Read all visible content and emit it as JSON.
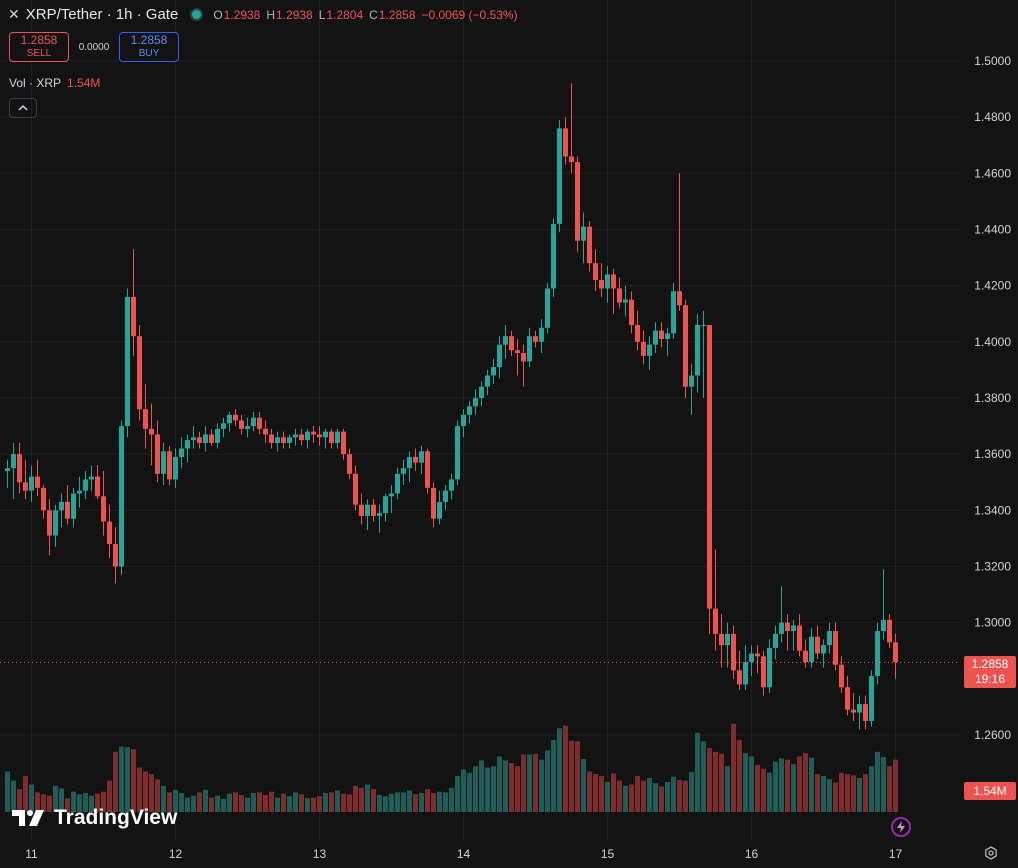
{
  "header": {
    "close_glyph": "✕",
    "symbol": "XRP/Tether · 1h · Gate",
    "ohlc": {
      "o_label": "O",
      "o": "1.2938",
      "h_label": "H",
      "h": "1.2938",
      "l_label": "L",
      "l": "1.2804",
      "c_label": "C",
      "c": "1.2858",
      "change": "−0.0069 (−0.53%)"
    }
  },
  "trade": {
    "sell_price": "1.2858",
    "sell_label": "SELL",
    "spread": "0.0000",
    "buy_price": "1.2858",
    "buy_label": "BUY"
  },
  "volume_legend": {
    "label": "Vol · XRP",
    "value": "1.54M"
  },
  "branding": {
    "name": "TradingView"
  },
  "last_price": {
    "price": "1.2858",
    "countdown": "19:16"
  },
  "last_volume": "1.54M",
  "colors": {
    "up": "#26a69a",
    "down": "#ef5350",
    "background": "#131313",
    "grid": "#1f1f1f",
    "text": "#d1d4dc"
  },
  "icons": {
    "close": "close-icon",
    "status": "status-dot",
    "collapse": "chevron-up-icon",
    "logo": "tradingview-logo-icon",
    "bolt": "lightning-icon",
    "settings": "gear-icon"
  },
  "chart_data": {
    "type": "candlestick",
    "symbol": "XRP/Tether",
    "interval": "1h",
    "exchange": "Gate",
    "y_ticks": [
      "1.5000",
      "1.4800",
      "1.4600",
      "1.4400",
      "1.4200",
      "1.4000",
      "1.3800",
      "1.3600",
      "1.3400",
      "1.3200",
      "1.3000",
      "1.2600"
    ],
    "ylim": [
      1.2434,
      1.5148
    ],
    "x_ticks": [
      "11",
      "12",
      "13",
      "14",
      "15",
      "16",
      "17"
    ],
    "x_tick_index": [
      4,
      28,
      52,
      76,
      100,
      124,
      148
    ],
    "grid": true,
    "last_price": 1.2858,
    "ohlc": [
      [
        1.354,
        1.358,
        1.348,
        1.355
      ],
      [
        1.355,
        1.364,
        1.344,
        1.36
      ],
      [
        1.36,
        1.364,
        1.346,
        1.35
      ],
      [
        1.35,
        1.358,
        1.344,
        1.347
      ],
      [
        1.347,
        1.356,
        1.343,
        1.352
      ],
      [
        1.352,
        1.358,
        1.345,
        1.348
      ],
      [
        1.348,
        1.349,
        1.337,
        1.34
      ],
      [
        1.34,
        1.344,
        1.324,
        1.331
      ],
      [
        1.331,
        1.342,
        1.327,
        1.34
      ],
      [
        1.34,
        1.346,
        1.334,
        1.343
      ],
      [
        1.343,
        1.349,
        1.335,
        1.337
      ],
      [
        1.337,
        1.348,
        1.334,
        1.346
      ],
      [
        1.346,
        1.352,
        1.341,
        1.347
      ],
      [
        1.347,
        1.354,
        1.344,
        1.351
      ],
      [
        1.351,
        1.356,
        1.347,
        1.352
      ],
      [
        1.352,
        1.356,
        1.344,
        1.345
      ],
      [
        1.345,
        1.354,
        1.331,
        1.336
      ],
      [
        1.336,
        1.342,
        1.323,
        1.328
      ],
      [
        1.328,
        1.334,
        1.314,
        1.32
      ],
      [
        1.32,
        1.372,
        1.317,
        1.37
      ],
      [
        1.37,
        1.419,
        1.366,
        1.416
      ],
      [
        1.416,
        1.433,
        1.395,
        1.402
      ],
      [
        1.402,
        1.406,
        1.372,
        1.376
      ],
      [
        1.376,
        1.385,
        1.362,
        1.369
      ],
      [
        1.369,
        1.378,
        1.356,
        1.367
      ],
      [
        1.367,
        1.372,
        1.35,
        1.353
      ],
      [
        1.353,
        1.364,
        1.349,
        1.361
      ],
      [
        1.361,
        1.363,
        1.349,
        1.351
      ],
      [
        1.351,
        1.362,
        1.348,
        1.359
      ],
      [
        1.359,
        1.366,
        1.355,
        1.362
      ],
      [
        1.362,
        1.367,
        1.357,
        1.365
      ],
      [
        1.365,
        1.37,
        1.362,
        1.366
      ],
      [
        1.366,
        1.368,
        1.362,
        1.364
      ],
      [
        1.364,
        1.37,
        1.361,
        1.367
      ],
      [
        1.367,
        1.369,
        1.363,
        1.364
      ],
      [
        1.364,
        1.371,
        1.362,
        1.369
      ],
      [
        1.369,
        1.373,
        1.366,
        1.371
      ],
      [
        1.371,
        1.375,
        1.368,
        1.374
      ],
      [
        1.374,
        1.376,
        1.37,
        1.372
      ],
      [
        1.372,
        1.374,
        1.367,
        1.369
      ],
      [
        1.369,
        1.373,
        1.366,
        1.37
      ],
      [
        1.37,
        1.375,
        1.368,
        1.373
      ],
      [
        1.373,
        1.375,
        1.367,
        1.369
      ],
      [
        1.369,
        1.372,
        1.364,
        1.367
      ],
      [
        1.367,
        1.369,
        1.362,
        1.364
      ],
      [
        1.364,
        1.368,
        1.361,
        1.366
      ],
      [
        1.366,
        1.368,
        1.362,
        1.364
      ],
      [
        1.364,
        1.367,
        1.362,
        1.366
      ],
      [
        1.366,
        1.369,
        1.363,
        1.367
      ],
      [
        1.367,
        1.369,
        1.363,
        1.365
      ],
      [
        1.365,
        1.369,
        1.362,
        1.368
      ],
      [
        1.368,
        1.37,
        1.364,
        1.367
      ],
      [
        1.367,
        1.37,
        1.363,
        1.366
      ],
      [
        1.366,
        1.369,
        1.362,
        1.368
      ],
      [
        1.368,
        1.369,
        1.362,
        1.364
      ],
      [
        1.364,
        1.369,
        1.362,
        1.368
      ],
      [
        1.368,
        1.369,
        1.358,
        1.36
      ],
      [
        1.36,
        1.362,
        1.351,
        1.353
      ],
      [
        1.353,
        1.356,
        1.34,
        1.342
      ],
      [
        1.342,
        1.346,
        1.335,
        1.338
      ],
      [
        1.338,
        1.344,
        1.333,
        1.342
      ],
      [
        1.342,
        1.344,
        1.336,
        1.338
      ],
      [
        1.338,
        1.342,
        1.332,
        1.339
      ],
      [
        1.339,
        1.346,
        1.336,
        1.345
      ],
      [
        1.345,
        1.349,
        1.339,
        1.346
      ],
      [
        1.346,
        1.355,
        1.344,
        1.353
      ],
      [
        1.353,
        1.358,
        1.349,
        1.355
      ],
      [
        1.355,
        1.361,
        1.35,
        1.359
      ],
      [
        1.359,
        1.362,
        1.354,
        1.357
      ],
      [
        1.357,
        1.363,
        1.353,
        1.361
      ],
      [
        1.361,
        1.362,
        1.346,
        1.348
      ],
      [
        1.348,
        1.35,
        1.334,
        1.337
      ],
      [
        1.337,
        1.347,
        1.335,
        1.343
      ],
      [
        1.343,
        1.349,
        1.34,
        1.347
      ],
      [
        1.347,
        1.353,
        1.344,
        1.351
      ],
      [
        1.351,
        1.372,
        1.349,
        1.37
      ],
      [
        1.37,
        1.376,
        1.366,
        1.374
      ],
      [
        1.374,
        1.379,
        1.371,
        1.377
      ],
      [
        1.377,
        1.383,
        1.374,
        1.38
      ],
      [
        1.38,
        1.386,
        1.377,
        1.384
      ],
      [
        1.384,
        1.39,
        1.381,
        1.388
      ],
      [
        1.388,
        1.394,
        1.385,
        1.391
      ],
      [
        1.391,
        1.402,
        1.387,
        1.399
      ],
      [
        1.399,
        1.406,
        1.394,
        1.402
      ],
      [
        1.402,
        1.404,
        1.395,
        1.397
      ],
      [
        1.397,
        1.401,
        1.388,
        1.396
      ],
      [
        1.396,
        1.399,
        1.384,
        1.393
      ],
      [
        1.393,
        1.405,
        1.391,
        1.402
      ],
      [
        1.402,
        1.404,
        1.398,
        1.4
      ],
      [
        1.4,
        1.408,
        1.396,
        1.405
      ],
      [
        1.405,
        1.421,
        1.403,
        1.419
      ],
      [
        1.419,
        1.444,
        1.416,
        1.442
      ],
      [
        1.442,
        1.479,
        1.439,
        1.476
      ],
      [
        1.476,
        1.48,
        1.463,
        1.466
      ],
      [
        1.466,
        1.492,
        1.46,
        1.464
      ],
      [
        1.464,
        1.466,
        1.432,
        1.436
      ],
      [
        1.436,
        1.446,
        1.428,
        1.441
      ],
      [
        1.441,
        1.443,
        1.425,
        1.428
      ],
      [
        1.428,
        1.433,
        1.418,
        1.422
      ],
      [
        1.422,
        1.428,
        1.416,
        1.419
      ],
      [
        1.419,
        1.427,
        1.414,
        1.424
      ],
      [
        1.424,
        1.426,
        1.41,
        1.419
      ],
      [
        1.419,
        1.423,
        1.412,
        1.414
      ],
      [
        1.414,
        1.42,
        1.409,
        1.415
      ],
      [
        1.415,
        1.418,
        1.403,
        1.406
      ],
      [
        1.406,
        1.411,
        1.397,
        1.4
      ],
      [
        1.4,
        1.404,
        1.392,
        1.395
      ],
      [
        1.395,
        1.402,
        1.39,
        1.399
      ],
      [
        1.399,
        1.407,
        1.396,
        1.404
      ],
      [
        1.404,
        1.407,
        1.398,
        1.401
      ],
      [
        1.401,
        1.405,
        1.395,
        1.403
      ],
      [
        1.403,
        1.421,
        1.401,
        1.418
      ],
      [
        1.418,
        1.46,
        1.411,
        1.413
      ],
      [
        1.413,
        1.415,
        1.38,
        1.384
      ],
      [
        1.384,
        1.392,
        1.374,
        1.388
      ],
      [
        1.388,
        1.41,
        1.382,
        1.406
      ],
      [
        1.406,
        1.411,
        1.38,
        1.406
      ],
      [
        1.406,
        1.406,
        1.296,
        1.305
      ],
      [
        1.305,
        1.326,
        1.29,
        1.296
      ],
      [
        1.296,
        1.303,
        1.284,
        1.292
      ],
      [
        1.292,
        1.3,
        1.284,
        1.296
      ],
      [
        1.296,
        1.299,
        1.28,
        1.283
      ],
      [
        1.283,
        1.29,
        1.276,
        1.278
      ],
      [
        1.278,
        1.292,
        1.276,
        1.286
      ],
      [
        1.286,
        1.292,
        1.281,
        1.289
      ],
      [
        1.289,
        1.292,
        1.282,
        1.288
      ],
      [
        1.288,
        1.29,
        1.274,
        1.277
      ],
      [
        1.277,
        1.294,
        1.275,
        1.291
      ],
      [
        1.291,
        1.299,
        1.287,
        1.296
      ],
      [
        1.296,
        1.313,
        1.293,
        1.3
      ],
      [
        1.3,
        1.303,
        1.29,
        1.297
      ],
      [
        1.297,
        1.301,
        1.29,
        1.299
      ],
      [
        1.299,
        1.303,
        1.288,
        1.29
      ],
      [
        1.29,
        1.294,
        1.284,
        1.286
      ],
      [
        1.286,
        1.298,
        1.284,
        1.295
      ],
      [
        1.295,
        1.299,
        1.287,
        1.289
      ],
      [
        1.289,
        1.294,
        1.284,
        1.292
      ],
      [
        1.292,
        1.3,
        1.289,
        1.297
      ],
      [
        1.297,
        1.3,
        1.283,
        1.285
      ],
      [
        1.285,
        1.288,
        1.275,
        1.277
      ],
      [
        1.277,
        1.281,
        1.267,
        1.269
      ],
      [
        1.269,
        1.275,
        1.265,
        1.268
      ],
      [
        1.268,
        1.274,
        1.262,
        1.271
      ],
      [
        1.271,
        1.274,
        1.262,
        1.265
      ],
      [
        1.265,
        1.283,
        1.263,
        1.281
      ],
      [
        1.281,
        1.3,
        1.278,
        1.297
      ],
      [
        1.297,
        1.319,
        1.294,
        1.301
      ],
      [
        1.301,
        1.303,
        1.291,
        1.293
      ],
      [
        1.293,
        1.296,
        1.28,
        1.286
      ]
    ],
    "volumes": [
      0.62,
      0.48,
      0.35,
      0.55,
      0.42,
      0.3,
      0.27,
      0.25,
      0.4,
      0.36,
      0.21,
      0.31,
      0.27,
      0.29,
      0.25,
      0.28,
      0.31,
      0.48,
      0.92,
      1.0,
      0.99,
      0.96,
      0.68,
      0.62,
      0.58,
      0.5,
      0.4,
      0.3,
      0.34,
      0.29,
      0.22,
      0.25,
      0.3,
      0.34,
      0.22,
      0.25,
      0.2,
      0.28,
      0.3,
      0.26,
      0.22,
      0.29,
      0.3,
      0.26,
      0.31,
      0.22,
      0.28,
      0.24,
      0.3,
      0.27,
      0.21,
      0.22,
      0.24,
      0.29,
      0.3,
      0.33,
      0.28,
      0.27,
      0.4,
      0.37,
      0.42,
      0.35,
      0.26,
      0.24,
      0.28,
      0.3,
      0.3,
      0.33,
      0.27,
      0.29,
      0.35,
      0.29,
      0.31,
      0.3,
      0.37,
      0.55,
      0.65,
      0.6,
      0.7,
      0.79,
      0.68,
      0.7,
      0.85,
      0.79,
      0.75,
      0.7,
      0.88,
      0.88,
      0.89,
      0.8,
      0.94,
      1.1,
      1.28,
      1.32,
      1.09,
      1.08,
      0.81,
      0.62,
      0.58,
      0.55,
      0.46,
      0.59,
      0.48,
      0.4,
      0.42,
      0.55,
      0.48,
      0.52,
      0.44,
      0.39,
      0.46,
      0.54,
      0.49,
      0.48,
      0.61,
      1.21,
      1.08,
      0.98,
      0.92,
      0.89,
      0.7,
      1.35,
      1.1,
      0.9,
      0.85,
      0.72,
      0.66,
      0.6,
      0.77,
      0.82,
      0.8,
      0.73,
      0.85,
      0.9,
      0.83,
      0.58,
      0.55,
      0.5,
      0.45,
      0.6,
      0.58,
      0.56,
      0.52,
      0.58,
      0.7,
      0.92,
      0.84,
      0.7,
      0.8,
      0.9,
      0.88,
      0.66,
      0.63
    ]
  }
}
